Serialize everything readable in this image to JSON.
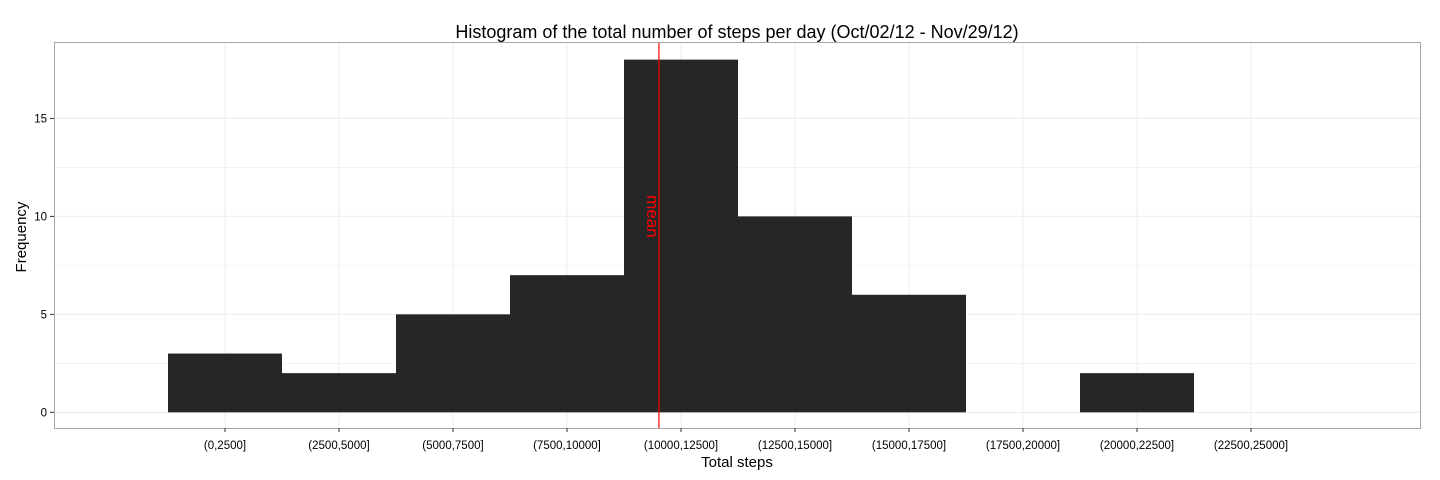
{
  "chart_data": {
    "type": "bar",
    "title": "Histogram of the total number of steps per day (Oct/02/12 - Nov/29/12)",
    "xlabel": "Total steps",
    "ylabel": "Frequency",
    "categories": [
      "(0,2500]",
      "(2500,5000]",
      "(5000,7500]",
      "(7500,10000]",
      "(10000,12500]",
      "(12500,15000]",
      "(15000,17500]",
      "(17500,20000]",
      "(20000,22500]",
      "(22500,25000]"
    ],
    "bars": [
      {
        "from": 0,
        "to": 2500,
        "count": 3
      },
      {
        "from": 2500,
        "to": 5000,
        "count": 2
      },
      {
        "from": 5000,
        "to": 7500,
        "count": 5
      },
      {
        "from": 7500,
        "to": 10000,
        "count": 7
      },
      {
        "from": 10000,
        "to": 12500,
        "count": 18
      },
      {
        "from": 12500,
        "to": 15000,
        "count": 10
      },
      {
        "from": 15000,
        "to": 17500,
        "count": 6
      },
      {
        "from": 17500,
        "to": 20000,
        "count": 0
      },
      {
        "from": 20000,
        "to": 22500,
        "count": 2
      },
      {
        "from": 22500,
        "to": 25000,
        "count": 0
      }
    ],
    "yticks": [
      0,
      5,
      10,
      15
    ],
    "ylim": [
      -0.8,
      18.9
    ],
    "mean_line": {
      "x": 10766,
      "label": "mean",
      "color": "#ff0000"
    },
    "bar_color": "#262626",
    "grid": true,
    "panel_border_color": "#a6a6a6",
    "grid_color": "#ececec"
  }
}
